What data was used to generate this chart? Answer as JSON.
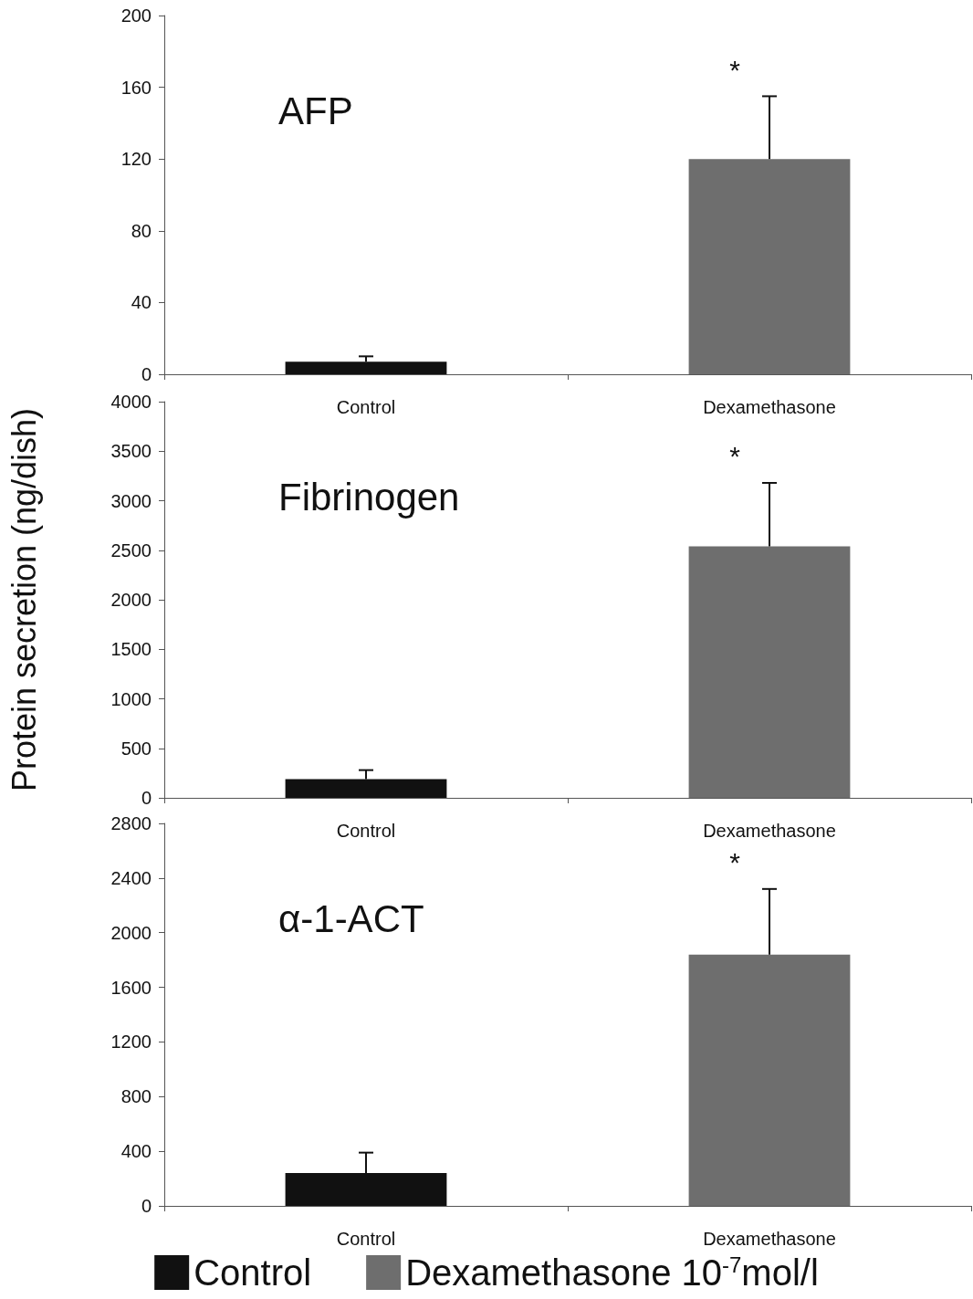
{
  "chart_data": [
    {
      "type": "bar",
      "title": "AFP",
      "categories": [
        "Control",
        "Dexamethasone"
      ],
      "ylim": [
        0,
        200
      ],
      "yticks": [
        0,
        40,
        80,
        120,
        160,
        200
      ],
      "grid": false,
      "series": [
        {
          "color": "#111111",
          "values": [
            7,
            null
          ],
          "errors": [
            [
              7,
              10
            ],
            null
          ]
        },
        {
          "color": "#6e6e6e",
          "values": [
            null,
            120
          ],
          "errors": [
            null,
            [
              120,
              155
            ]
          ]
        }
      ],
      "annotations": [
        "*"
      ]
    },
    {
      "type": "bar",
      "title": "Fibrinogen",
      "ylabel": "Protein secretion (ng/dish)",
      "categories": [
        "Control",
        "Dexamethasone"
      ],
      "ylim": [
        0,
        4000
      ],
      "yticks": [
        0,
        500,
        1000,
        1500,
        2000,
        2500,
        3000,
        3500,
        4000
      ],
      "grid": false,
      "series": [
        {
          "color": "#111111",
          "values": [
            190,
            null
          ],
          "errors": [
            [
              190,
              280
            ],
            null
          ]
        },
        {
          "color": "#6e6e6e",
          "values": [
            null,
            2540
          ],
          "errors": [
            null,
            [
              2540,
              3180
            ]
          ]
        }
      ],
      "annotations": [
        "*"
      ]
    },
    {
      "type": "bar",
      "title": "α-1-ACT",
      "categories": [
        "Control",
        "Dexamethasone"
      ],
      "ylim": [
        0,
        2800
      ],
      "yticks": [
        0,
        400,
        800,
        1200,
        1600,
        2000,
        2400,
        2800
      ],
      "grid": false,
      "legend": "bottom",
      "series": [
        {
          "name": "Control",
          "color": "#111111",
          "values": [
            240,
            null
          ],
          "errors": [
            [
              240,
              390
            ],
            null
          ]
        },
        {
          "name": "Dexamethasone 10$^{-7}$mol/l",
          "color": "#6e6e6e",
          "values": [
            null,
            1840
          ],
          "errors": [
            null,
            [
              1840,
              2320
            ]
          ]
        }
      ],
      "annotations": [
        "*"
      ]
    }
  ]
}
